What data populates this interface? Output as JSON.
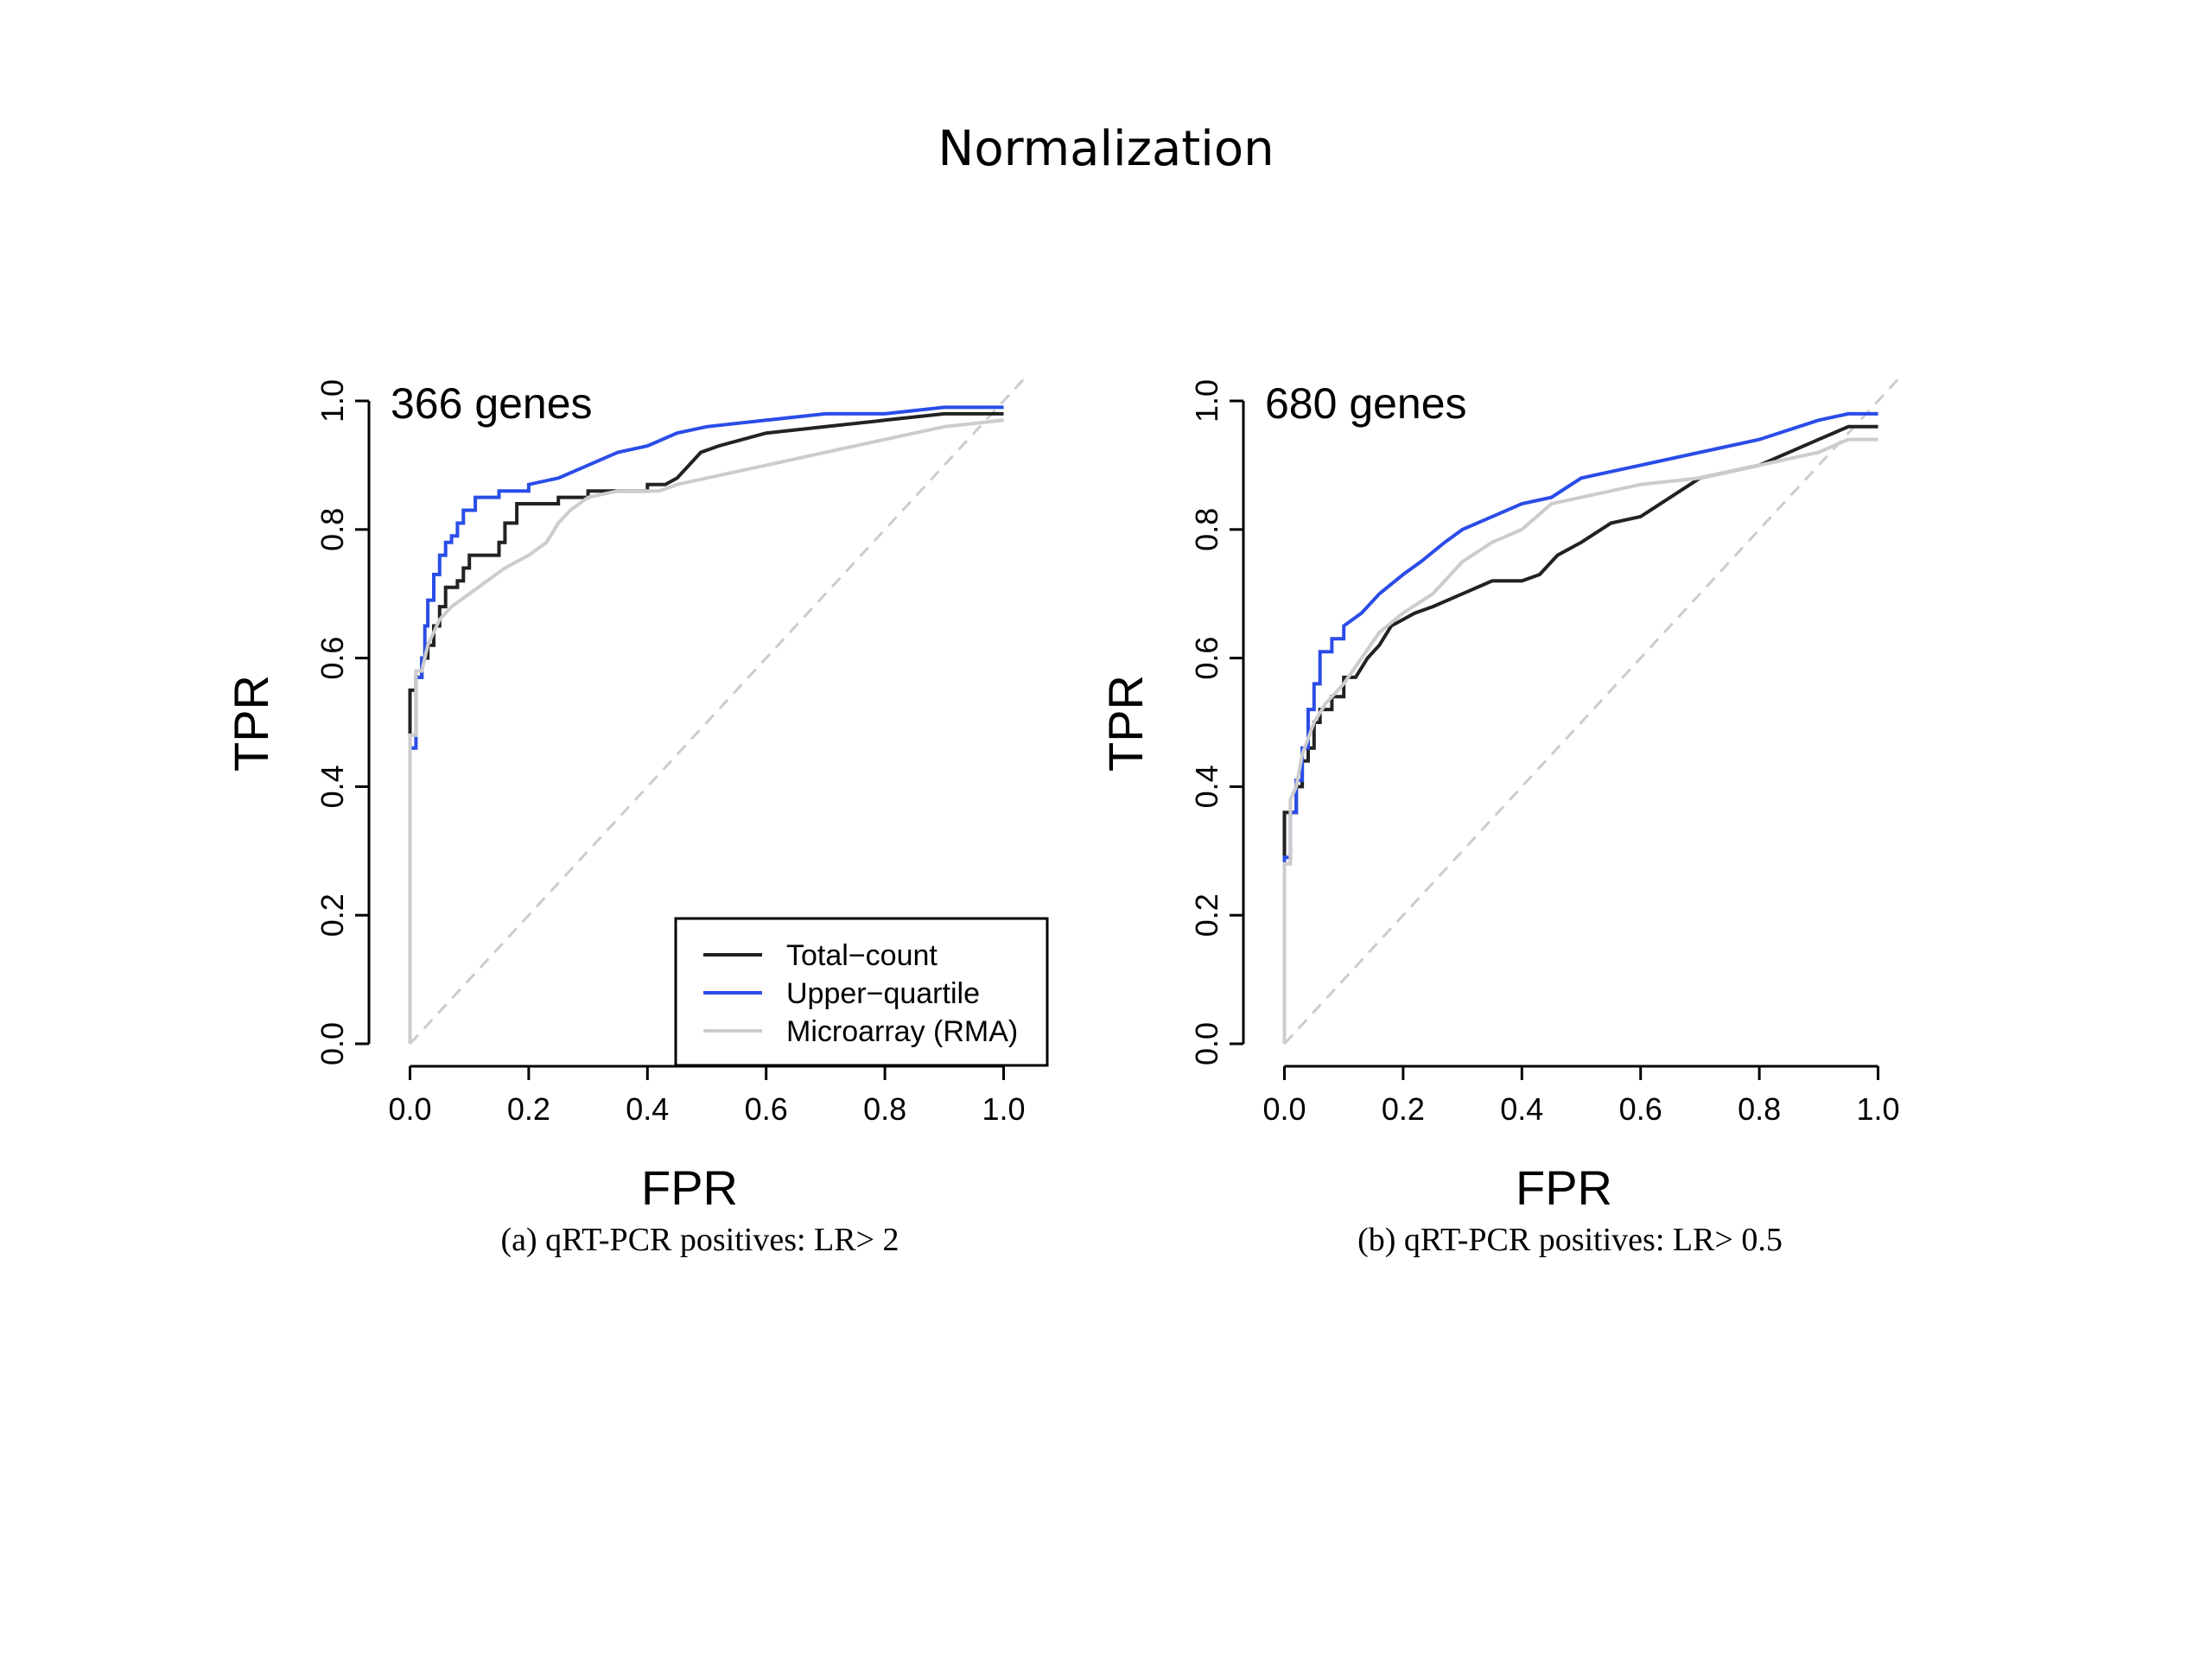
{
  "page": {
    "title": "Normalization"
  },
  "colors": {
    "total_count": "#222222",
    "upper_quartile": "#2a4de8",
    "microarray": "#cccccc",
    "diagonal": "#cccccc"
  },
  "chart_data": [
    {
      "type": "line",
      "annotation": "366 genes",
      "caption": "(a) qRT-PCR positives: LR> 2",
      "xlabel": "FPR",
      "ylabel": "TPR",
      "xlim": [
        0,
        1
      ],
      "ylim": [
        0,
        1
      ],
      "xticks": [
        "0.0",
        "0.2",
        "0.4",
        "0.6",
        "0.8",
        "1.0"
      ],
      "yticks": [
        "0.0",
        "0.2",
        "0.4",
        "0.6",
        "0.8",
        "1.0"
      ],
      "reference_diagonal": true,
      "legend": {
        "placement": "bottom-right",
        "entries": [
          "Total−count",
          "Upper−quartile",
          "Microarray (RMA)"
        ]
      },
      "series": [
        {
          "name": "Total−count",
          "color_key": "total_count",
          "points": [
            [
              0,
              0
            ],
            [
              0,
              0.55
            ],
            [
              0.01,
              0.55
            ],
            [
              0.01,
              0.57
            ],
            [
              0.02,
              0.57
            ],
            [
              0.02,
              0.6
            ],
            [
              0.03,
              0.6
            ],
            [
              0.03,
              0.62
            ],
            [
              0.04,
              0.62
            ],
            [
              0.04,
              0.65
            ],
            [
              0.05,
              0.65
            ],
            [
              0.05,
              0.68
            ],
            [
              0.06,
              0.68
            ],
            [
              0.06,
              0.71
            ],
            [
              0.08,
              0.71
            ],
            [
              0.08,
              0.72
            ],
            [
              0.09,
              0.72
            ],
            [
              0.09,
              0.74
            ],
            [
              0.1,
              0.74
            ],
            [
              0.1,
              0.76
            ],
            [
              0.15,
              0.76
            ],
            [
              0.15,
              0.78
            ],
            [
              0.16,
              0.78
            ],
            [
              0.16,
              0.81
            ],
            [
              0.18,
              0.81
            ],
            [
              0.18,
              0.84
            ],
            [
              0.25,
              0.84
            ],
            [
              0.25,
              0.85
            ],
            [
              0.3,
              0.85
            ],
            [
              0.3,
              0.86
            ],
            [
              0.4,
              0.86
            ],
            [
              0.4,
              0.87
            ],
            [
              0.43,
              0.87
            ],
            [
              0.45,
              0.88
            ],
            [
              0.47,
              0.9
            ],
            [
              0.49,
              0.92
            ],
            [
              0.52,
              0.93
            ],
            [
              0.6,
              0.95
            ],
            [
              0.7,
              0.96
            ],
            [
              0.8,
              0.97
            ],
            [
              0.9,
              0.98
            ],
            [
              1.0,
              0.98
            ]
          ]
        },
        {
          "name": "Upper−quartile",
          "color_key": "upper_quartile",
          "points": [
            [
              0,
              0
            ],
            [
              0,
              0.46
            ],
            [
              0.01,
              0.46
            ],
            [
              0.01,
              0.57
            ],
            [
              0.02,
              0.57
            ],
            [
              0.02,
              0.6
            ],
            [
              0.025,
              0.6
            ],
            [
              0.025,
              0.65
            ],
            [
              0.03,
              0.65
            ],
            [
              0.03,
              0.69
            ],
            [
              0.04,
              0.69
            ],
            [
              0.04,
              0.73
            ],
            [
              0.05,
              0.73
            ],
            [
              0.05,
              0.76
            ],
            [
              0.06,
              0.76
            ],
            [
              0.06,
              0.78
            ],
            [
              0.07,
              0.78
            ],
            [
              0.07,
              0.79
            ],
            [
              0.08,
              0.79
            ],
            [
              0.08,
              0.81
            ],
            [
              0.09,
              0.81
            ],
            [
              0.09,
              0.83
            ],
            [
              0.11,
              0.83
            ],
            [
              0.11,
              0.85
            ],
            [
              0.15,
              0.85
            ],
            [
              0.15,
              0.86
            ],
            [
              0.2,
              0.86
            ],
            [
              0.2,
              0.87
            ],
            [
              0.25,
              0.88
            ],
            [
              0.3,
              0.9
            ],
            [
              0.35,
              0.92
            ],
            [
              0.4,
              0.93
            ],
            [
              0.45,
              0.95
            ],
            [
              0.5,
              0.96
            ],
            [
              0.6,
              0.97
            ],
            [
              0.7,
              0.98
            ],
            [
              0.8,
              0.98
            ],
            [
              0.9,
              0.99
            ],
            [
              1.0,
              0.99
            ]
          ]
        },
        {
          "name": "Microarray (RMA)",
          "color_key": "microarray",
          "points": [
            [
              0,
              0
            ],
            [
              0,
              0.48
            ],
            [
              0.01,
              0.48
            ],
            [
              0.01,
              0.58
            ],
            [
              0.02,
              0.58
            ],
            [
              0.03,
              0.62
            ],
            [
              0.04,
              0.64
            ],
            [
              0.05,
              0.66
            ],
            [
              0.07,
              0.68
            ],
            [
              0.1,
              0.7
            ],
            [
              0.13,
              0.72
            ],
            [
              0.16,
              0.74
            ],
            [
              0.2,
              0.76
            ],
            [
              0.23,
              0.78
            ],
            [
              0.25,
              0.81
            ],
            [
              0.27,
              0.83
            ],
            [
              0.3,
              0.85
            ],
            [
              0.35,
              0.86
            ],
            [
              0.4,
              0.86
            ],
            [
              0.42,
              0.86
            ],
            [
              0.45,
              0.87
            ],
            [
              0.5,
              0.88
            ],
            [
              0.55,
              0.89
            ],
            [
              0.6,
              0.9
            ],
            [
              0.7,
              0.92
            ],
            [
              0.8,
              0.94
            ],
            [
              0.9,
              0.96
            ],
            [
              1.0,
              0.97
            ]
          ]
        }
      ]
    },
    {
      "type": "line",
      "annotation": "680 genes",
      "caption": "(b) qRT-PCR positives: LR> 0.5",
      "xlabel": "FPR",
      "ylabel": "TPR",
      "xlim": [
        0,
        1
      ],
      "ylim": [
        0,
        1
      ],
      "xticks": [
        "0.0",
        "0.2",
        "0.4",
        "0.6",
        "0.8",
        "1.0"
      ],
      "yticks": [
        "0.0",
        "0.2",
        "0.4",
        "0.6",
        "0.8",
        "1.0"
      ],
      "reference_diagonal": true,
      "series": [
        {
          "name": "Total−count",
          "color_key": "total_count",
          "points": [
            [
              0,
              0
            ],
            [
              0,
              0.36
            ],
            [
              0.02,
              0.36
            ],
            [
              0.02,
              0.4
            ],
            [
              0.03,
              0.4
            ],
            [
              0.03,
              0.44
            ],
            [
              0.04,
              0.44
            ],
            [
              0.04,
              0.46
            ],
            [
              0.05,
              0.46
            ],
            [
              0.05,
              0.5
            ],
            [
              0.06,
              0.5
            ],
            [
              0.06,
              0.52
            ],
            [
              0.08,
              0.52
            ],
            [
              0.08,
              0.54
            ],
            [
              0.1,
              0.54
            ],
            [
              0.1,
              0.57
            ],
            [
              0.12,
              0.57
            ],
            [
              0.14,
              0.6
            ],
            [
              0.16,
              0.62
            ],
            [
              0.18,
              0.65
            ],
            [
              0.22,
              0.67
            ],
            [
              0.25,
              0.68
            ],
            [
              0.3,
              0.7
            ],
            [
              0.35,
              0.72
            ],
            [
              0.4,
              0.72
            ],
            [
              0.43,
              0.73
            ],
            [
              0.46,
              0.76
            ],
            [
              0.5,
              0.78
            ],
            [
              0.55,
              0.81
            ],
            [
              0.6,
              0.82
            ],
            [
              0.65,
              0.85
            ],
            [
              0.7,
              0.88
            ],
            [
              0.8,
              0.9
            ],
            [
              0.9,
              0.94
            ],
            [
              0.95,
              0.96
            ],
            [
              1.0,
              0.96
            ]
          ]
        },
        {
          "name": "Upper−quartile",
          "color_key": "upper_quartile",
          "points": [
            [
              0,
              0
            ],
            [
              0,
              0.29
            ],
            [
              0.01,
              0.29
            ],
            [
              0.01,
              0.36
            ],
            [
              0.02,
              0.36
            ],
            [
              0.02,
              0.41
            ],
            [
              0.03,
              0.41
            ],
            [
              0.03,
              0.46
            ],
            [
              0.04,
              0.46
            ],
            [
              0.04,
              0.52
            ],
            [
              0.05,
              0.52
            ],
            [
              0.05,
              0.56
            ],
            [
              0.06,
              0.56
            ],
            [
              0.06,
              0.61
            ],
            [
              0.08,
              0.61
            ],
            [
              0.08,
              0.63
            ],
            [
              0.1,
              0.63
            ],
            [
              0.1,
              0.65
            ],
            [
              0.13,
              0.67
            ],
            [
              0.16,
              0.7
            ],
            [
              0.2,
              0.73
            ],
            [
              0.23,
              0.75
            ],
            [
              0.27,
              0.78
            ],
            [
              0.3,
              0.8
            ],
            [
              0.35,
              0.82
            ],
            [
              0.4,
              0.84
            ],
            [
              0.45,
              0.85
            ],
            [
              0.5,
              0.88
            ],
            [
              0.55,
              0.89
            ],
            [
              0.6,
              0.9
            ],
            [
              0.7,
              0.92
            ],
            [
              0.8,
              0.94
            ],
            [
              0.9,
              0.97
            ],
            [
              0.95,
              0.98
            ],
            [
              1.0,
              0.98
            ]
          ]
        },
        {
          "name": "Microarray (RMA)",
          "color_key": "microarray",
          "points": [
            [
              0,
              0
            ],
            [
              0,
              0.28
            ],
            [
              0.01,
              0.28
            ],
            [
              0.01,
              0.38
            ],
            [
              0.02,
              0.4
            ],
            [
              0.03,
              0.45
            ],
            [
              0.05,
              0.5
            ],
            [
              0.07,
              0.53
            ],
            [
              0.1,
              0.56
            ],
            [
              0.13,
              0.6
            ],
            [
              0.16,
              0.64
            ],
            [
              0.2,
              0.67
            ],
            [
              0.25,
              0.7
            ],
            [
              0.3,
              0.75
            ],
            [
              0.35,
              0.78
            ],
            [
              0.4,
              0.8
            ],
            [
              0.45,
              0.84
            ],
            [
              0.5,
              0.85
            ],
            [
              0.55,
              0.86
            ],
            [
              0.6,
              0.87
            ],
            [
              0.7,
              0.88
            ],
            [
              0.8,
              0.9
            ],
            [
              0.9,
              0.92
            ],
            [
              0.95,
              0.94
            ],
            [
              1.0,
              0.94
            ]
          ]
        }
      ]
    }
  ]
}
